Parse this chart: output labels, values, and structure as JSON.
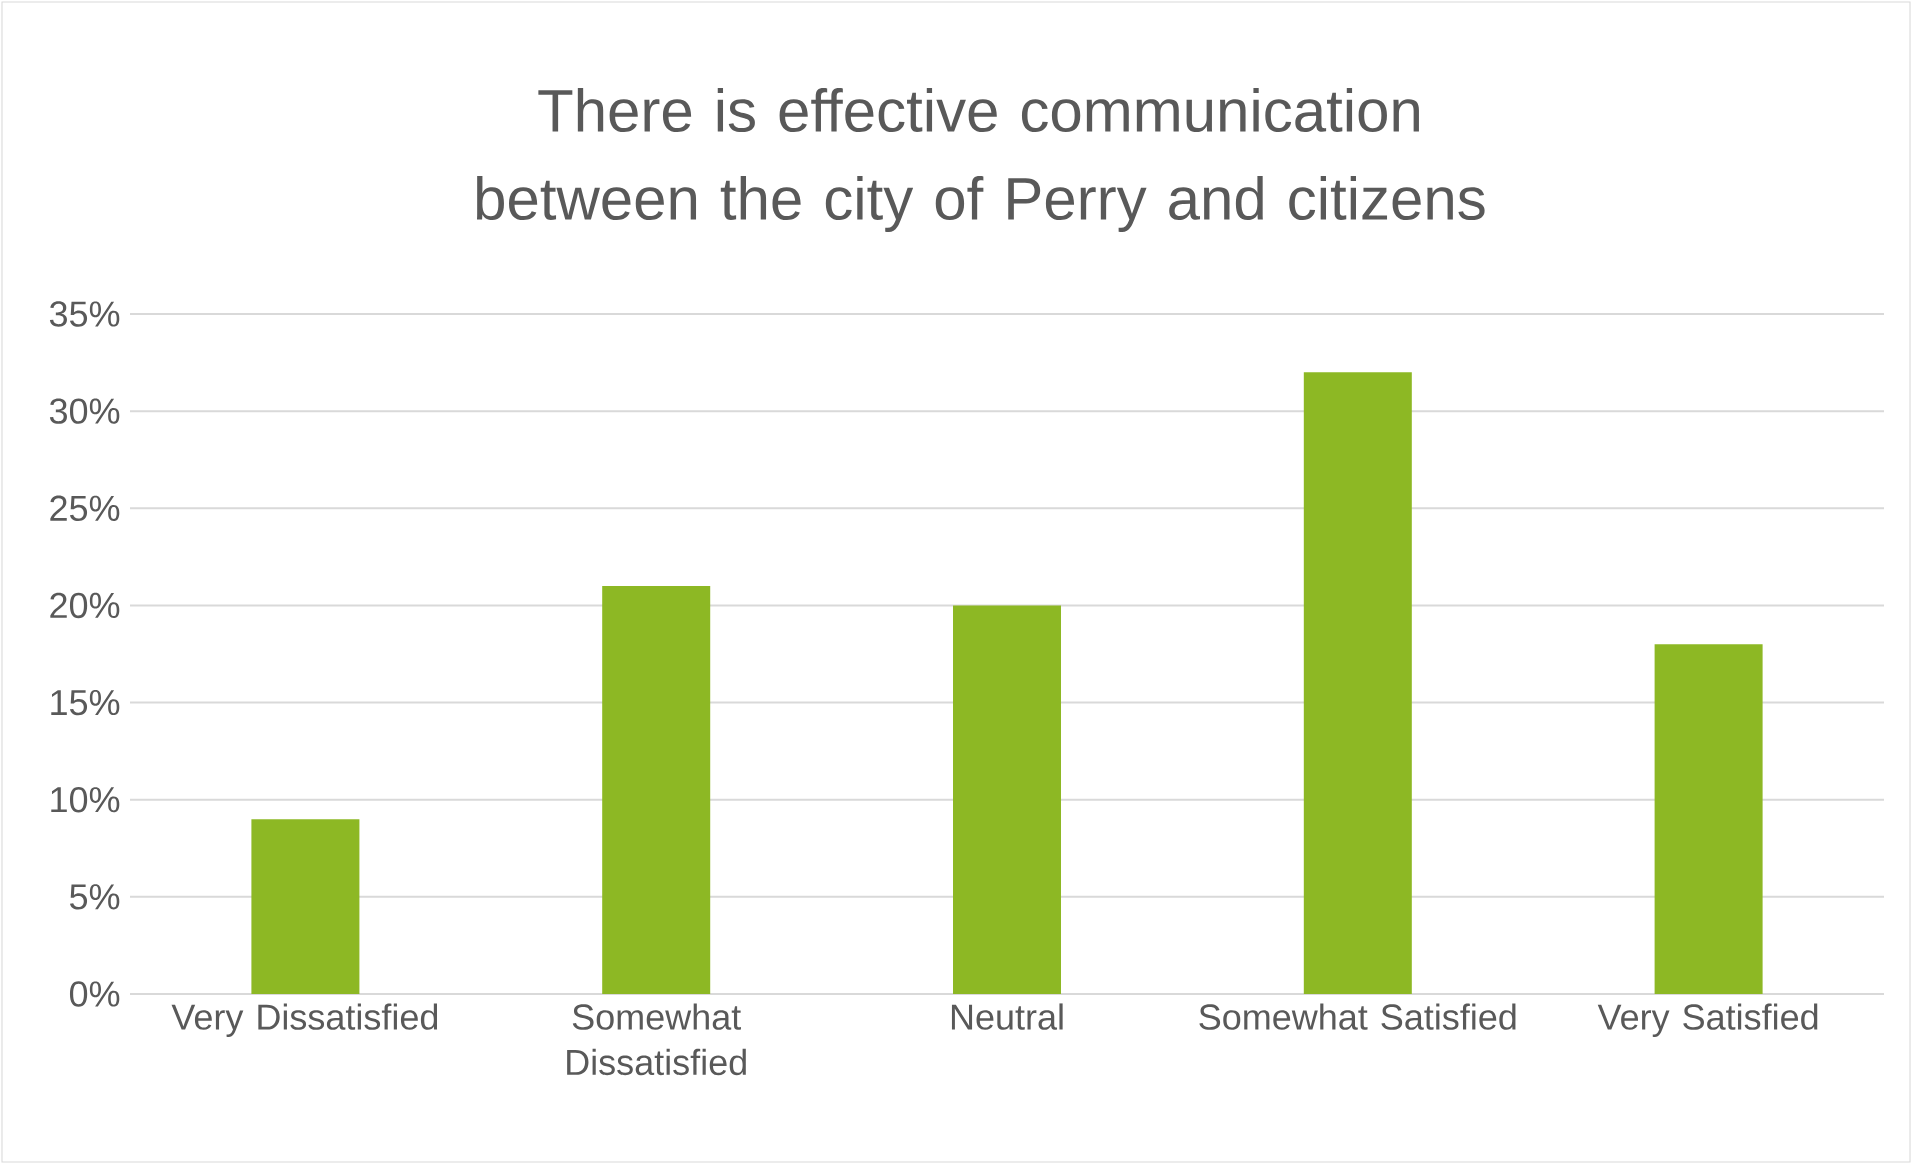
{
  "chart_data": {
    "type": "bar",
    "title": "There is effective communication between the city of Perry and citizens",
    "categories": [
      "Very Dissatisfied",
      "Somewhat Dissatisfied",
      "Neutral",
      "Somewhat Satisfied",
      "Very Satisfied"
    ],
    "values": [
      9,
      21,
      20,
      32,
      18
    ],
    "color": "#8db824",
    "ylim": [
      0,
      35
    ],
    "yticks": [
      {
        "value": 0,
        "label": "0%"
      },
      {
        "value": 5,
        "label": "5%"
      },
      {
        "value": 10,
        "label": "10%"
      },
      {
        "value": 15,
        "label": "15%"
      },
      {
        "value": 20,
        "label": "20%"
      },
      {
        "value": 25,
        "label": "25%"
      },
      {
        "value": 30,
        "label": "30%"
      },
      {
        "value": 35,
        "label": "35%"
      }
    ],
    "grid": "y"
  }
}
